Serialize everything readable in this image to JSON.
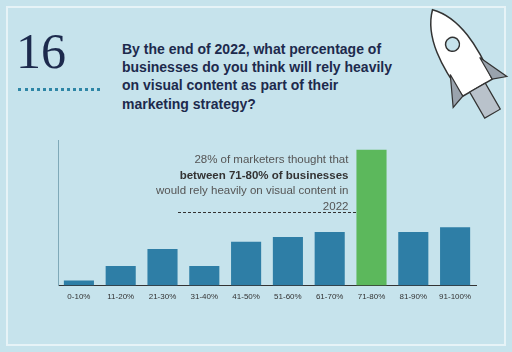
{
  "chart_data": {
    "type": "bar",
    "figure_number": "16",
    "title": "By the end of 2022, what percentage of businesses do you think will rely heavily on visual content as part of their marketing strategy?",
    "annotation": [
      "28% of marketers thought that ",
      "between 71-80% of businesses",
      " would rely heavily on visual content in 2022"
    ],
    "categories": [
      "0-10%",
      "11-20%",
      "21-30%",
      "31-40%",
      "41-50%",
      "51-60%",
      "61-70%",
      "71-80%",
      "81-90%",
      "91-100%"
    ],
    "values": [
      1,
      4,
      7.5,
      4,
      9,
      10,
      11,
      28,
      11,
      12
    ],
    "colors": [
      "#2e7ea6",
      "#2e7ea6",
      "#2e7ea6",
      "#2e7ea6",
      "#2e7ea6",
      "#2e7ea6",
      "#2e7ea6",
      "#5cb85c",
      "#2e7ea6",
      "#2e7ea6"
    ],
    "ylim": [
      0,
      30
    ],
    "grid": false,
    "tick_labels": "x"
  }
}
